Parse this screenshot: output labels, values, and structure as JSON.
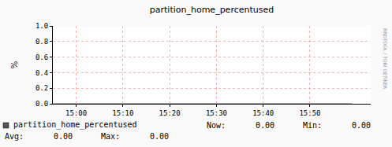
{
  "chart_data": {
    "type": "line",
    "title": "partition_home_percentused",
    "y_label": "%",
    "x": [
      895,
      900,
      905,
      910,
      915,
      920,
      925,
      930,
      935,
      940,
      945,
      950,
      955,
      959
    ],
    "series": [
      {
        "name": "partition_home_percentused",
        "color": "#555555",
        "values": [
          0,
          0,
          0,
          0,
          0,
          0,
          0,
          0,
          0,
          0,
          0,
          0,
          0,
          0
        ]
      }
    ],
    "xlim": [
      895,
      963
    ],
    "xticks": [
      {
        "value": 900,
        "label": "15:00"
      },
      {
        "value": 910,
        "label": "15:10"
      },
      {
        "value": 920,
        "label": "15:20"
      },
      {
        "value": 930,
        "label": "15:30"
      },
      {
        "value": 940,
        "label": "15:40"
      },
      {
        "value": 950,
        "label": "15:50"
      }
    ],
    "ylim": [
      0,
      1
    ],
    "yticks": [
      {
        "value": 0,
        "label": "0.0"
      },
      0.2,
      0.4,
      0.6,
      0.8,
      {
        "value": 1,
        "label": "1.0"
      }
    ],
    "grid": true,
    "stats": {
      "labels": [
        "Now:",
        "Min:",
        "Avg:",
        "Max:"
      ],
      "values": [
        0,
        0,
        0,
        0
      ],
      "value_labels": [
        "0.00",
        "0.00",
        "0.00",
        "0.00"
      ]
    },
    "annotations": [
      "RRDTOOL / TOBI OETIKER"
    ]
  }
}
